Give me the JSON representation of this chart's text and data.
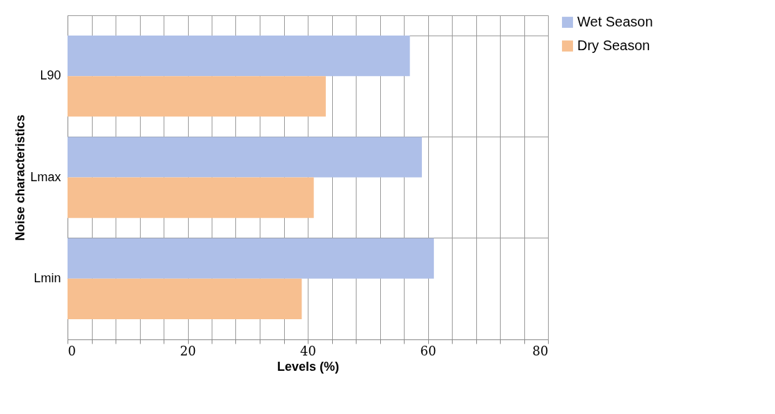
{
  "chart_data": {
    "type": "bar",
    "orientation": "horizontal",
    "xlabel": "Levels (%)",
    "ylabel": "Noise characteristics",
    "categories": [
      "L90",
      "Lmax",
      "Lmin"
    ],
    "series": [
      {
        "name": "Wet Season",
        "color": "#aebfe8",
        "values": [
          57,
          59,
          61
        ]
      },
      {
        "name": "Dry Season",
        "color": "#f7bf90",
        "values": [
          43,
          41,
          39
        ]
      }
    ],
    "xlim": [
      0,
      80
    ],
    "xticks": [
      0,
      {
        "value": 4,
        "label": null
      },
      {
        "value": 8,
        "label": null
      },
      {
        "value": 12,
        "label": null
      },
      {
        "value": 16,
        "label": null
      },
      20,
      {
        "value": 24,
        "label": null
      },
      {
        "value": 28,
        "label": null
      },
      {
        "value": 32,
        "label": null
      },
      {
        "value": 36,
        "label": null
      },
      40,
      {
        "value": 44,
        "label": null
      },
      {
        "value": 48,
        "label": null
      },
      {
        "value": 52,
        "label": null
      },
      {
        "value": 56,
        "label": null
      },
      60,
      {
        "value": 64,
        "label": null
      },
      {
        "value": 68,
        "label": null
      },
      {
        "value": 72,
        "label": null
      },
      {
        "value": 76,
        "label": null
      },
      80
    ],
    "grid": true,
    "legend": "right"
  }
}
